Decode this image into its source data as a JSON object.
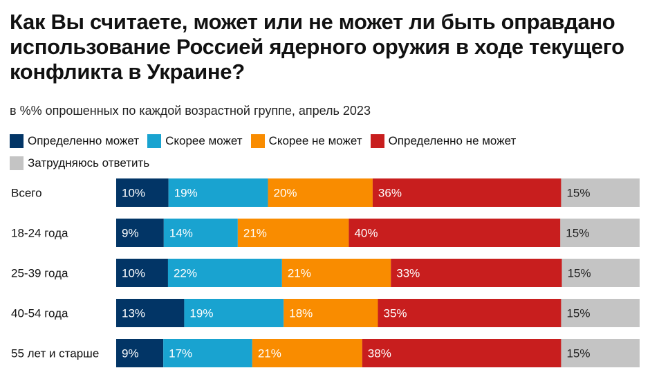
{
  "chart_data": {
    "type": "bar",
    "orientation": "horizontal-stacked",
    "title": "Как Вы считаете, может или не может ли быть оправдано использование Россией ядерного оружия в ходе текущего конфликта в Украине?",
    "subtitle": "в %% опрошенных по каждой возрастной группе, апрель 2023",
    "legend_placement": "top-left",
    "categories": [
      "Всего",
      "18-24 года",
      "25-39 года",
      "40-54 года",
      "55 лет и старше"
    ],
    "series": [
      {
        "name": "Определенно может",
        "color": "#023566",
        "values": [
          10,
          9,
          10,
          13,
          9
        ]
      },
      {
        "name": "Скорее может",
        "color": "#19a3d0",
        "values": [
          19,
          14,
          22,
          19,
          17
        ]
      },
      {
        "name": "Скорее не может",
        "color": "#f98c00",
        "values": [
          20,
          21,
          21,
          18,
          21
        ]
      },
      {
        "name": "Определенно не может",
        "color": "#c81e1e",
        "values": [
          36,
          40,
          33,
          35,
          38
        ]
      },
      {
        "name": "Затрудняюсь ответить",
        "color": "#c4c4c4",
        "values": [
          15,
          15,
          15,
          15,
          15
        ]
      }
    ],
    "value_suffix": "%"
  }
}
